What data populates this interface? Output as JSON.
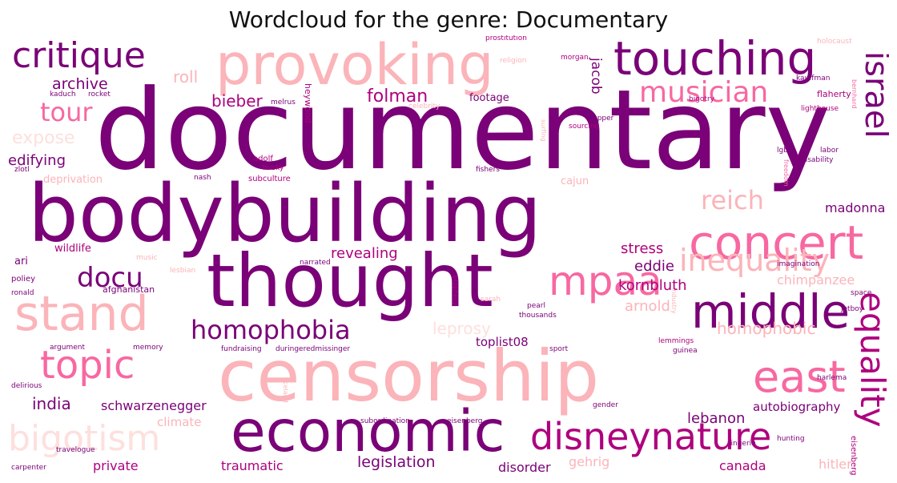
{
  "title": "Wordcloud for the genre: Documentary",
  "colors": {
    "dark_purple": "#7a0177",
    "magenta": "#ae017e",
    "pink": "#f768a1",
    "light_pink": "#fbb4b9",
    "pale_pink": "#fde0dd"
  },
  "words": {
    "documentary": "documentary",
    "bodybuilding": "bodybuilding",
    "thought": "thought",
    "censorship": "censorship",
    "provoking": "provoking",
    "economic": "economic",
    "touching": "touching",
    "stand": "stand",
    "critique": "critique",
    "concert": "concert",
    "middle": "middle",
    "disneynature": "disneynature",
    "bigotism": "bigotism",
    "topic": "topic",
    "east": "east",
    "mpaa": "mpaa",
    "musician": "musician",
    "inequality": "inequality",
    "homophobia": "homophobia",
    "israel": "israel",
    "equality": "equality",
    "reich": "reich",
    "docu": "docu",
    "tour": "tour",
    "folman": "folman",
    "archive": "archive",
    "india": "india",
    "expose": "expose",
    "bieber": "bieber",
    "edifying": "edifying",
    "roll": "roll",
    "jacob": "jacob",
    "madonna": "madonna",
    "stress": "stress",
    "eddie": "eddie",
    "revealing": "revealing",
    "kornbluth": "kornbluth",
    "leprosy": "leprosy",
    "arnold": "arnold",
    "homophobic": "homophobic",
    "toplist08": "toplist08",
    "schwarzenegger": "schwarzenegger",
    "lebanon": "lebanon",
    "autobiography": "autobiography",
    "legislation": "legislation",
    "private": "private",
    "traumatic": "traumatic",
    "disorder": "disorder",
    "gehrig": "gehrig",
    "canada": "canada",
    "hitler": "hitler",
    "climate": "climate",
    "wildlife": "wildlife",
    "ari": "ari",
    "footage": "footage",
    "afghanistan": "afghanistan",
    "chimpanzee": "chimpanzee",
    "deprivation": "deprivation",
    "subculture": "subculture",
    "adolf": "adolf",
    "prostitution": "prostitution",
    "kauffman": "kauffman",
    "flaherty": "flaherty",
    "lighthouse": "lighthouse",
    "bernhard": "bernhard",
    "disability": "disability",
    "subordination": "subordination",
    "fundraising": "fundraising",
    "harlema": "harlema",
    "travelogue": "travelogue",
    "carpenter": "carpenter",
    "holocaust": "holocaust",
    "delirious": "delirious",
    "argument": "argument",
    "memory": "memory",
    "sport": "sport",
    "imagination": "imagination",
    "pearl": "pearl",
    "ronald": "ronald",
    "narrated": "narrated",
    "space": "space",
    "lgbt": "lgbt",
    "labor": "labor",
    "fishers": "fishers",
    "cajun": "cajun",
    "gender": "gender",
    "bigotry": "bigotry",
    "upper": "upper",
    "morgan": "morgan",
    "poliey": "poliey",
    "iceland": "iceland",
    "prophecy": "prophecy",
    "music": "music",
    "lesbian": "lesbian",
    "celebrity": "celebrity",
    "religion": "religion",
    "husky": "husky",
    "surfing": "surfing",
    "sourcing": "sourcing",
    "kaduch": "kaduch",
    "rocket": "rocket",
    "melrus": "melrus",
    "heywood": "heywood",
    "zlotl": "zlotl",
    "nash": "nash",
    "freedom": "freedom",
    "guinea": "guinea",
    "lemmings": "lemmings",
    "hunting": "hunting",
    "eisenberg": "eisenberg",
    "lingerie": "lingerie",
    "duringeredmissinger": "duringeredmissinger",
    "thousands": "thousands",
    "sarah": "sarah",
    "jetboy": "jetboy",
    "industry": "industry"
  }
}
